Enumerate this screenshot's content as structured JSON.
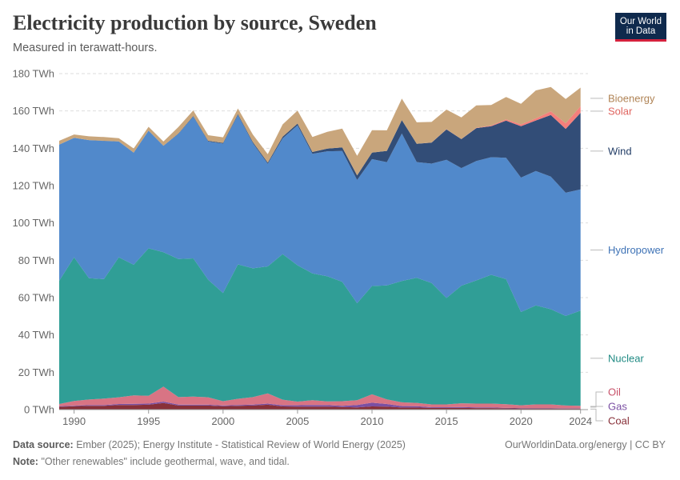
{
  "header": {
    "title": "Electricity production by source, Sweden",
    "subtitle": "Measured in terawatt-hours.",
    "logo_line1": "Our World",
    "logo_line2": "in Data"
  },
  "footer": {
    "source_label": "Data source:",
    "source_text": "Ember (2025); Energy Institute - Statistical Review of World Energy (2025)",
    "note_label": "Note:",
    "note_text": "\"Other renewables\" include geothermal, wave, and tidal.",
    "credit": "OurWorldinData.org/energy | CC BY"
  },
  "chart_data": {
    "type": "area",
    "stacked": true,
    "ylim": [
      0,
      180
    ],
    "y_ticks": [
      0,
      20,
      40,
      60,
      80,
      100,
      120,
      140,
      160,
      180
    ],
    "y_tick_labels": [
      "0 TWh",
      "20 TWh",
      "40 TWh",
      "60 TWh",
      "80 TWh",
      "100 TWh",
      "120 TWh",
      "140 TWh",
      "160 TWh",
      "180 TWh"
    ],
    "x_ticks": [
      1990,
      1995,
      2000,
      2005,
      2010,
      2015,
      2020,
      2024
    ],
    "x_tick_labels": [
      "1990",
      "1995",
      "2000",
      "2005",
      "2010",
      "2015",
      "2020",
      "2024"
    ],
    "xlim": [
      1989,
      2024.5
    ],
    "grid": true,
    "legend_placement": "right",
    "x": [
      1989,
      1990,
      1991,
      1992,
      1993,
      1994,
      1995,
      1996,
      1997,
      1998,
      1999,
      2000,
      2001,
      2002,
      2003,
      2004,
      2005,
      2006,
      2007,
      2008,
      2009,
      2010,
      2011,
      2012,
      2013,
      2014,
      2015,
      2016,
      2017,
      2018,
      2019,
      2020,
      2021,
      2022,
      2023,
      2024
    ],
    "series": [
      {
        "name": "Coal",
        "color": "#883039",
        "values": [
          1.5,
          1.8,
          2.0,
          2.0,
          2.5,
          2.5,
          2.6,
          3.5,
          2.2,
          2.2,
          2.2,
          1.8,
          2.0,
          2.2,
          2.6,
          1.7,
          1.6,
          1.6,
          1.6,
          1.4,
          1.2,
          1.7,
          1.6,
          1.1,
          1.1,
          0.9,
          0.9,
          0.9,
          0.8,
          0.8,
          0.7,
          0.6,
          0.6,
          0.6,
          0.5,
          0.5
        ]
      },
      {
        "name": "Gas",
        "color": "#7a4fa3",
        "values": [
          0.3,
          0.3,
          0.4,
          0.4,
          0.5,
          0.6,
          0.6,
          0.8,
          0.5,
          0.4,
          0.4,
          0.4,
          0.5,
          0.5,
          0.6,
          0.6,
          0.7,
          0.9,
          0.8,
          0.6,
          1.3,
          2.0,
          1.4,
          0.8,
          0.7,
          0.4,
          0.4,
          0.5,
          0.4,
          0.4,
          0.2,
          0.2,
          0.2,
          0.2,
          0.2,
          0.2
        ]
      },
      {
        "name": "Oil",
        "color": "#d87484",
        "values": [
          1.2,
          2.5,
          3.0,
          3.5,
          3.6,
          4.5,
          4.2,
          8.0,
          4.0,
          4.4,
          4.0,
          2.3,
          3.3,
          4.0,
          5.5,
          3.0,
          2.0,
          2.5,
          2.0,
          2.5,
          2.5,
          4.5,
          2.5,
          2.0,
          1.8,
          1.5,
          1.5,
          2.0,
          2.0,
          2.0,
          2.0,
          1.5,
          2.0,
          2.0,
          1.5,
          1.3
        ]
      },
      {
        "name": "Nuclear",
        "color": "#309e96",
        "values": [
          66,
          77,
          65,
          64,
          75,
          70,
          79,
          72,
          74,
          74,
          63,
          58,
          72,
          69,
          68,
          78,
          73,
          68,
          67,
          64,
          52,
          58,
          61,
          65,
          67,
          65,
          57,
          63,
          66,
          69,
          67,
          50,
          53,
          51,
          48,
          51
        ]
      },
      {
        "name": "Hydropower",
        "color": "#5189cb",
        "values": [
          73,
          64,
          74,
          74,
          62,
          60,
          63,
          57,
          67,
          76,
          74,
          80,
          80,
          67,
          55,
          62,
          75,
          64,
          67,
          70,
          66,
          68,
          66,
          79,
          62,
          64,
          74,
          63,
          64,
          63,
          65,
          72,
          72,
          71,
          66,
          65
        ]
      },
      {
        "name": "Wind",
        "color": "#324d77",
        "values": [
          0.0,
          0.0,
          0.0,
          0.1,
          0.1,
          0.1,
          0.1,
          0.1,
          0.2,
          0.3,
          0.4,
          0.4,
          0.5,
          0.6,
          0.6,
          0.9,
          0.9,
          1.0,
          1.4,
          2.0,
          2.5,
          3.5,
          6.1,
          7.2,
          9.8,
          11.2,
          16.3,
          15.5,
          17.6,
          16.6,
          19.9,
          27.5,
          27.1,
          33.0,
          34.2,
          41.0
        ]
      },
      {
        "name": "Solar",
        "color": "#f47f7b",
        "values": [
          0,
          0,
          0,
          0,
          0,
          0,
          0,
          0,
          0,
          0,
          0,
          0,
          0,
          0,
          0,
          0,
          0,
          0,
          0,
          0,
          0,
          0,
          0,
          0,
          0,
          0.1,
          0.1,
          0.1,
          0.2,
          0.4,
          0.7,
          1.0,
          1.1,
          2.0,
          3.0,
          3.5
        ]
      },
      {
        "name": "Bioenergy",
        "color": "#c9a67c",
        "values": [
          2.0,
          1.8,
          2.0,
          2.0,
          1.7,
          2.2,
          2.0,
          2.2,
          3.5,
          3.0,
          3.0,
          3.0,
          3.0,
          4.0,
          4.5,
          6.6,
          7.0,
          8.0,
          9.0,
          10.0,
          10.5,
          12.0,
          11.0,
          11.5,
          11.5,
          11.0,
          10.5,
          11.5,
          12.0,
          11.0,
          12.0,
          11.0,
          15.0,
          13.0,
          13.0,
          10.0
        ]
      }
    ]
  }
}
